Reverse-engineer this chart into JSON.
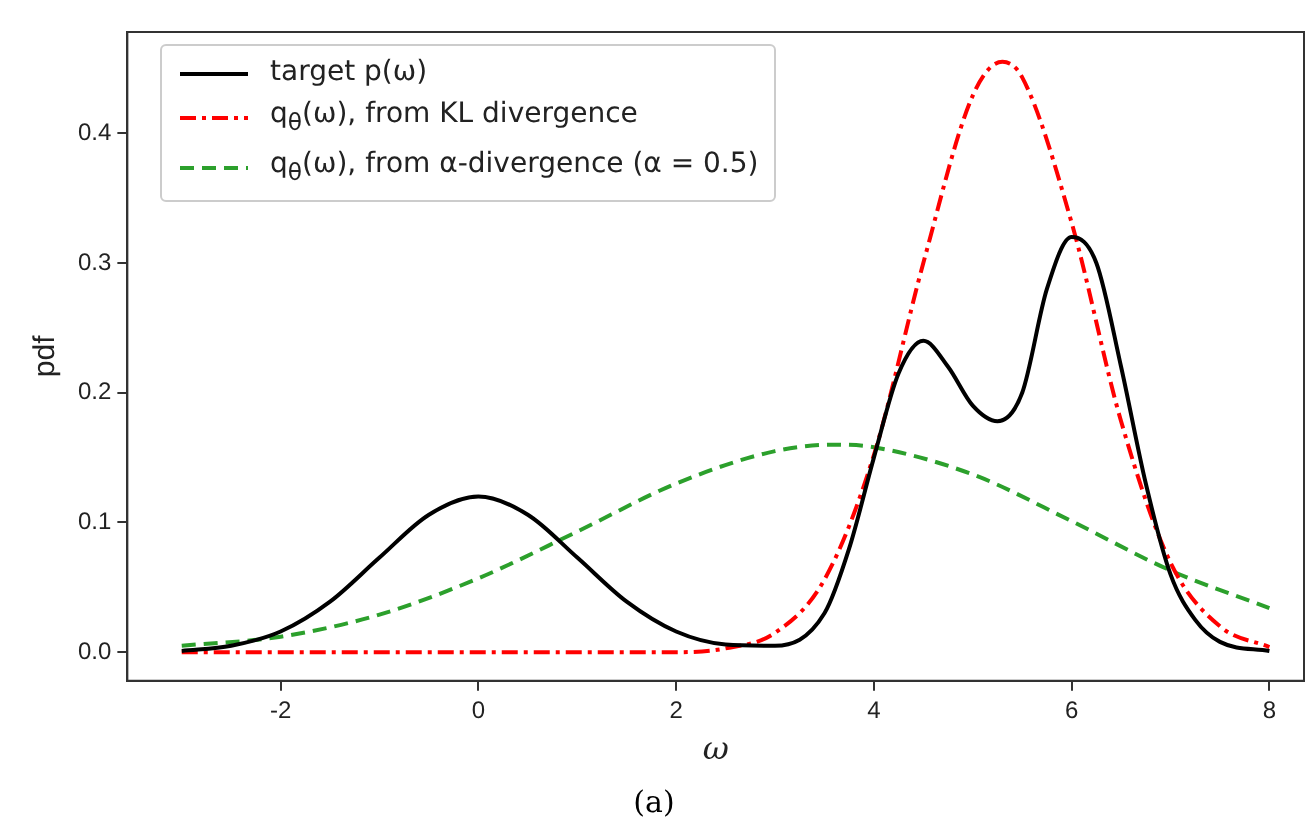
{
  "chart_data": {
    "type": "line",
    "xlabel": "ω",
    "ylabel": "pdf",
    "legend": "top left",
    "grid": false,
    "marker": "none",
    "xlim": [
      -3.55,
      8.35
    ],
    "ylim": [
      -0.022,
      0.478
    ],
    "xticks": [
      -2,
      0,
      2,
      4,
      6,
      8
    ],
    "yticks": [
      {
        "value": 0,
        "label": "0.0"
      },
      {
        "value": 0.1,
        "label": "0.1"
      },
      {
        "value": 0.2,
        "label": "0.2"
      },
      {
        "value": 0.3,
        "label": "0.3"
      },
      {
        "value": 0.4,
        "label": "0.4"
      }
    ],
    "annotations": [
      "(a)"
    ],
    "series": [
      {
        "name": "target p(ω)",
        "color": "#000000",
        "line_style": "solid",
        "x": [
          -3,
          -2.5,
          -2,
          -1.5,
          -1,
          -0.5,
          0,
          0.5,
          1,
          1.5,
          2,
          2.5,
          3,
          3.5,
          3.75,
          4,
          4.25,
          4.5,
          4.75,
          5,
          5.25,
          5.5,
          5.75,
          6,
          6.25,
          6.5,
          6.75,
          7,
          7.25,
          7.5,
          8
        ],
        "values": [
          0.001,
          0.005,
          0.016,
          0.039,
          0.073,
          0.106,
          0.12,
          0.106,
          0.073,
          0.039,
          0.016,
          0.006,
          0.005,
          0.03,
          0.08,
          0.15,
          0.215,
          0.24,
          0.22,
          0.19,
          0.178,
          0.2,
          0.28,
          0.32,
          0.3,
          0.22,
          0.13,
          0.06,
          0.025,
          0.008,
          0.001
        ]
      },
      {
        "name": "q$_{θ}$(ω), from KL divergence",
        "color": "#ff0000",
        "line_style": "dashdot",
        "x": [
          -3,
          -1,
          1,
          2,
          2.5,
          3,
          3.5,
          4,
          4.5,
          5,
          5.3,
          5.5,
          6,
          6.5,
          7,
          7.5,
          8
        ],
        "values": [
          0,
          0,
          0,
          0,
          0.003,
          0.015,
          0.056,
          0.152,
          0.3,
          0.429,
          0.455,
          0.443,
          0.331,
          0.178,
          0.069,
          0.02,
          0.004
        ]
      },
      {
        "name": "q$_{θ}$(ω), from α-divergence (α = 0.5)",
        "color": "#2ca02c",
        "line_style": "dashed",
        "x": [
          -3,
          -2,
          -1,
          0,
          1,
          2,
          3,
          3.6,
          4,
          5,
          6,
          7,
          8
        ],
        "values": [
          0.005,
          0.012,
          0.029,
          0.057,
          0.093,
          0.13,
          0.155,
          0.16,
          0.158,
          0.137,
          0.101,
          0.063,
          0.034
        ]
      }
    ]
  }
}
